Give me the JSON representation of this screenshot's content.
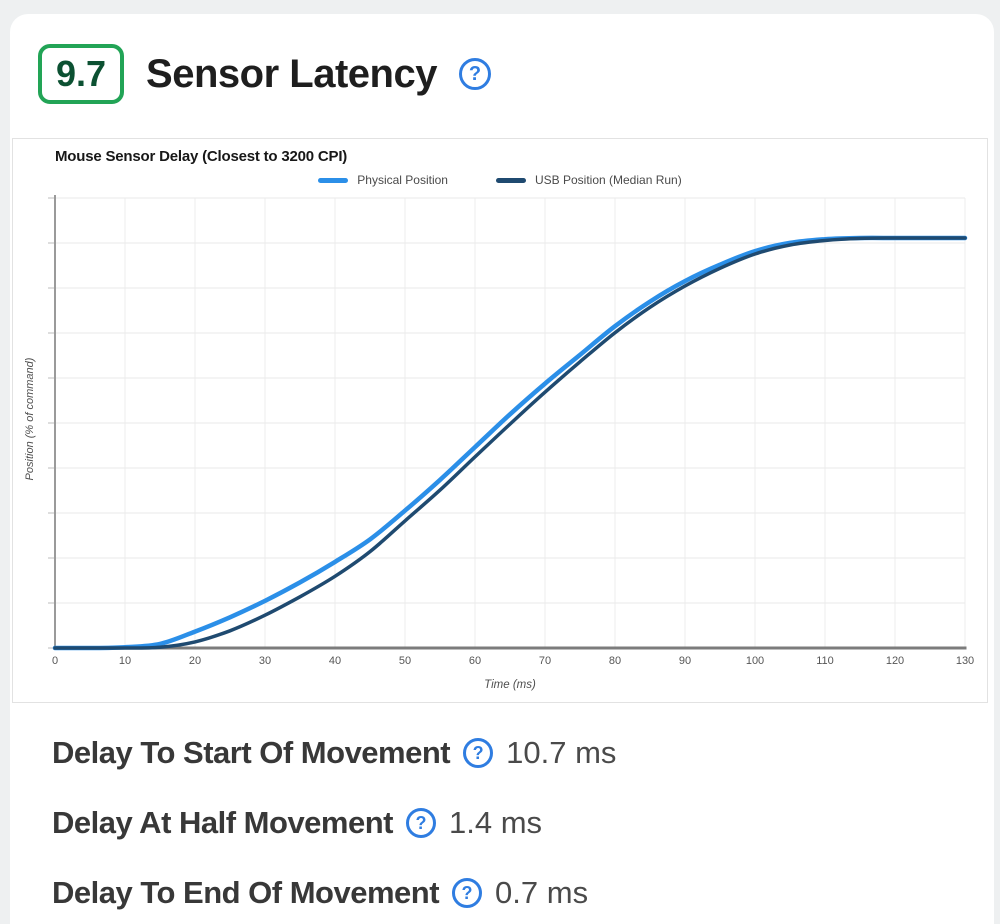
{
  "header": {
    "score": "9.7",
    "title": "Sensor Latency"
  },
  "icons": {
    "help": "?"
  },
  "chart_data": {
    "type": "line",
    "title": "Mouse Sensor Delay (Closest to 3200 CPI)",
    "xlabel": "Time (ms)",
    "ylabel": "Position (% of command)",
    "xlim": [
      0,
      130
    ],
    "ylim": [
      0,
      112
    ],
    "grid": true,
    "legend_position": "top",
    "x_ticks": [
      0,
      10,
      20,
      30,
      40,
      50,
      60,
      70,
      80,
      90,
      100,
      110,
      120,
      130
    ],
    "x": [
      0,
      5,
      10,
      15,
      20,
      25,
      30,
      35,
      40,
      45,
      50,
      55,
      60,
      65,
      70,
      75,
      80,
      85,
      90,
      95,
      100,
      105,
      110,
      115,
      120,
      125,
      130
    ],
    "series": [
      {
        "name": "Physical Position",
        "color": "#2b8fe8",
        "width": 4.5,
        "values": [
          0,
          0,
          0.2,
          1,
          4,
          7.5,
          11.5,
          16,
          21,
          26.5,
          33.5,
          41,
          49,
          57,
          64.5,
          71.5,
          78.5,
          84.5,
          89.5,
          93.5,
          96.8,
          98.8,
          99.7,
          100,
          100,
          100,
          100
        ]
      },
      {
        "name": "USB Position (Median Run)",
        "color": "#1f4a70",
        "width": 3.5,
        "values": [
          0,
          0,
          0,
          0.2,
          1.5,
          4.2,
          8,
          12.5,
          17.5,
          23.5,
          31,
          38.5,
          46.6,
          54.6,
          62.4,
          69.8,
          76.9,
          83.1,
          88.3,
          92.6,
          96.1,
          98.3,
          99.4,
          99.9,
          100,
          100,
          100
        ]
      }
    ]
  },
  "metrics": [
    {
      "label": "Delay To Start Of Movement",
      "value": "10.7 ms"
    },
    {
      "label": "Delay At Half Movement",
      "value": "1.4 ms"
    },
    {
      "label": "Delay To End Of Movement",
      "value": "0.7 ms"
    }
  ]
}
